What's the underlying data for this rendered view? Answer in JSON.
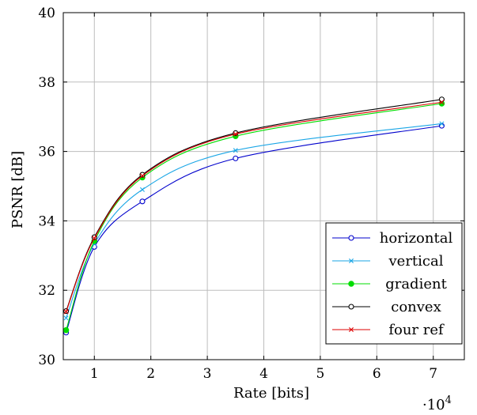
{
  "chart_data": {
    "type": "line",
    "xlabel": "Rate [bits]",
    "ylabel": "PSNR [dB]",
    "x_scale_note": "·10",
    "x_scale_exp": "4",
    "xlim": [
      0.45,
      7.55
    ],
    "ylim": [
      30,
      40
    ],
    "grid": true,
    "legend_position": "bottom-right",
    "x_ticks": [
      1,
      2,
      3,
      4,
      5,
      6,
      7
    ],
    "x_tick_labels": [
      "1",
      "2",
      "3",
      "4",
      "5",
      "6",
      "7"
    ],
    "y_ticks": [
      30,
      32,
      34,
      36,
      38,
      40
    ],
    "y_tick_labels": [
      "30",
      "32",
      "34",
      "36",
      "38",
      "40"
    ],
    "series": [
      {
        "name": "horizontal",
        "color": "#0000cc",
        "marker": "circle-open",
        "x": [
          0.5,
          1.0,
          1.85,
          3.5,
          7.15
        ],
        "y": [
          30.78,
          33.25,
          34.56,
          35.8,
          36.74
        ]
      },
      {
        "name": "vertical",
        "color": "#1aa6e6",
        "marker": "x",
        "x": [
          0.5,
          1.0,
          1.85,
          3.5,
          7.15
        ],
        "y": [
          31.2,
          33.34,
          34.9,
          36.03,
          36.8
        ]
      },
      {
        "name": "gradient",
        "color": "#00dd00",
        "marker": "circle-filled",
        "x": [
          0.5,
          1.0,
          1.85,
          3.5,
          7.15
        ],
        "y": [
          30.85,
          33.42,
          35.25,
          36.44,
          37.38
        ]
      },
      {
        "name": "convex",
        "color": "#000000",
        "marker": "circle-open",
        "x": [
          0.5,
          1.0,
          1.85,
          3.5,
          7.15
        ],
        "y": [
          31.4,
          33.53,
          35.33,
          36.53,
          37.5
        ]
      },
      {
        "name": "four ref",
        "color": "#dd0000",
        "marker": "x",
        "x": [
          0.5,
          1.0,
          1.85,
          3.5,
          7.15
        ],
        "y": [
          31.38,
          33.5,
          35.3,
          36.5,
          37.42
        ]
      }
    ]
  }
}
